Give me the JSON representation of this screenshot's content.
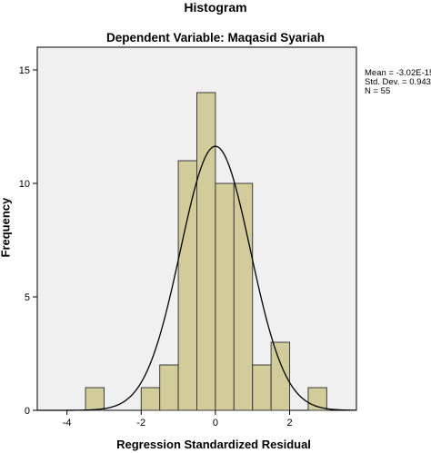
{
  "chart_data": {
    "type": "bar",
    "title": "Histogram",
    "subtitle": "Dependent Variable: Maqasid Syariah",
    "xlabel": "Regression Standardized Residual",
    "ylabel": "Frequency",
    "xlim": [
      -4.8,
      3.8
    ],
    "ylim": [
      0,
      16
    ],
    "xticks": [
      "-4",
      "-2",
      "0",
      "2"
    ],
    "yticks": [
      "0",
      "5",
      "10",
      "15"
    ],
    "bin_width": 0.5,
    "bins": [
      {
        "x0": -3.5,
        "x1": -3.0,
        "count": 1
      },
      {
        "x0": -3.0,
        "x1": -2.5,
        "count": 0
      },
      {
        "x0": -2.5,
        "x1": -2.0,
        "count": 0
      },
      {
        "x0": -2.0,
        "x1": -1.5,
        "count": 1
      },
      {
        "x0": -1.5,
        "x1": -1.0,
        "count": 2
      },
      {
        "x0": -1.0,
        "x1": -0.5,
        "count": 11
      },
      {
        "x0": -0.5,
        "x1": 0.0,
        "count": 14
      },
      {
        "x0": 0.0,
        "x1": 0.5,
        "count": 10
      },
      {
        "x0": 0.5,
        "x1": 1.0,
        "count": 10
      },
      {
        "x0": 1.0,
        "x1": 1.5,
        "count": 2
      },
      {
        "x0": 1.5,
        "x1": 2.0,
        "count": 3
      },
      {
        "x0": 2.0,
        "x1": 2.5,
        "count": 0
      },
      {
        "x0": 2.5,
        "x1": 3.0,
        "count": 1
      }
    ],
    "normal_curve": {
      "mean": 0,
      "sd": 0.943,
      "n": 55
    },
    "stats": [
      "Mean = -3.02E-15",
      "Std. Dev. = 0.943",
      "N = 55"
    ],
    "grid": false,
    "legend": "none",
    "colors": {
      "plot_bg": "#f0f0f0",
      "bar_fill": "#d2cc9a",
      "bar_stroke": "#3c3c3c",
      "curve": "#000000"
    }
  }
}
